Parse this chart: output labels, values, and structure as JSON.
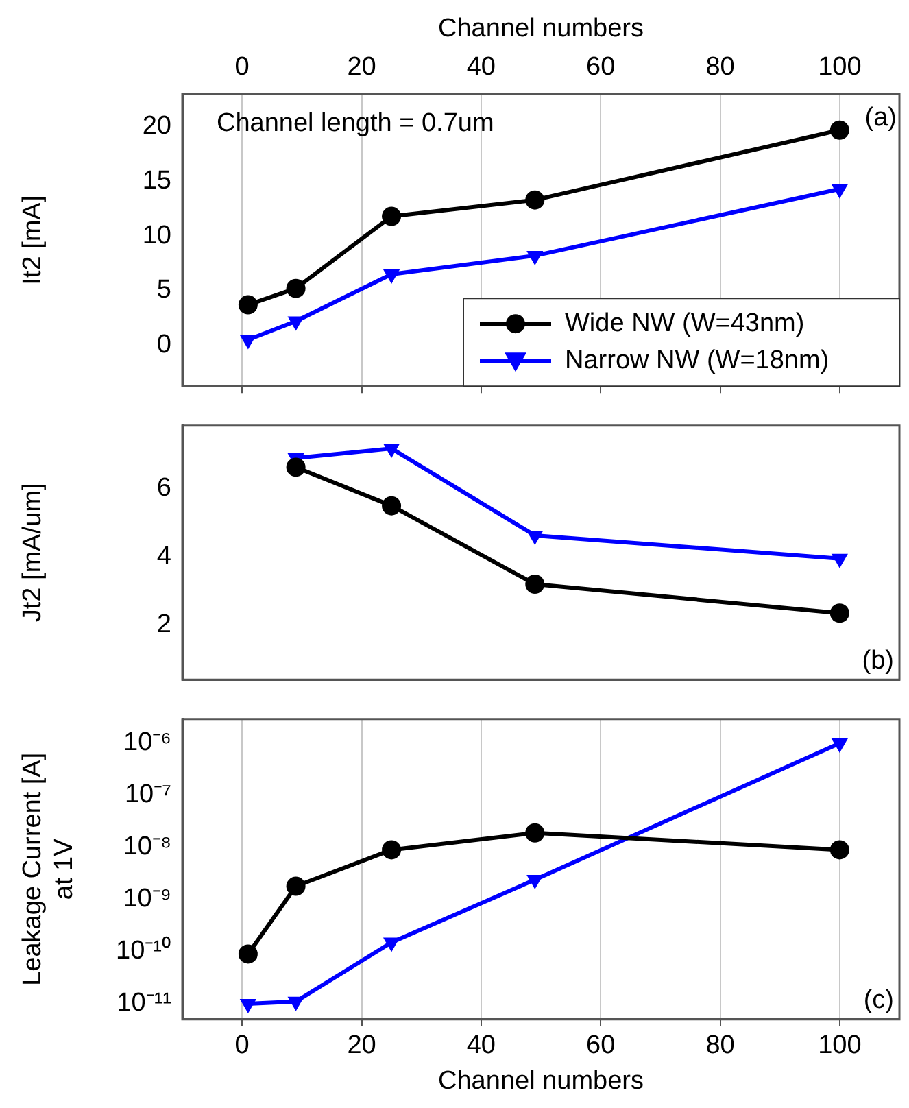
{
  "chart_data": [
    {
      "type": "line",
      "ylabel": "It2 [mA]",
      "x2label": "Channel numbers",
      "annotations": [
        "Channel length = 0.7um",
        "(a)"
      ],
      "x": [
        1,
        9,
        25,
        49,
        100
      ],
      "xlim": [
        -10,
        110
      ],
      "x2lim": [
        -10,
        110
      ],
      "x2ticks": [
        0,
        20,
        40,
        60,
        80,
        100
      ],
      "ylim": [
        -3.75,
        23
      ],
      "yticks": [
        0,
        5,
        10,
        15,
        20
      ],
      "tick_labels": "y",
      "grid": "x",
      "legend": "bottom right",
      "line_style": "solid",
      "series": [
        {
          "name": "Wide NW (W=43nm)",
          "color": "#000000",
          "marker": "circle",
          "values": [
            3.7,
            5.2,
            11.8,
            13.3,
            19.7
          ]
        },
        {
          "name": "Narrow NW (W=18nm)",
          "color": "#0000ff",
          "marker": "triangle",
          "values": [
            0.5,
            2.2,
            6.5,
            8.2,
            14.3
          ]
        }
      ]
    },
    {
      "type": "line",
      "ylabel": "Jt2 [mA/um]",
      "annotations": [
        "(b)"
      ],
      "x": [
        9,
        25,
        49,
        100
      ],
      "xlim": [
        -10,
        110
      ],
      "ylim": [
        0.4,
        7.85
      ],
      "yticks": [
        2,
        4,
        6
      ],
      "tick_labels": "y",
      "grid": "x",
      "line_style": "solid",
      "series": [
        {
          "color": "#000000",
          "marker": "circle",
          "values": [
            6.63,
            5.5,
            3.2,
            2.35
          ]
        },
        {
          "color": "#0000ff",
          "marker": "triangle",
          "values": [
            6.9,
            7.18,
            4.63,
            3.95
          ]
        }
      ]
    },
    {
      "type": "line",
      "ylabel": "Leakage Current [A]\nat 1V",
      "xlabel": "Channel numbers",
      "annotations": [
        "(c)"
      ],
      "x": [
        1,
        9,
        25,
        49,
        100
      ],
      "xlim": [
        -10,
        110
      ],
      "xticks": [
        0,
        20,
        40,
        60,
        80,
        100
      ],
      "log": "y",
      "ylim": [
        5e-12,
        2.9e-06
      ],
      "yticks": [
        {
          "value": 1e-11,
          "label": "10⁻¹¹"
        },
        {
          "value": 1e-10,
          "label": "10⁻¹⁰"
        },
        {
          "value": 1e-09,
          "label": "10⁻⁹"
        },
        {
          "value": 1e-08,
          "label": "10⁻⁸"
        },
        {
          "value": 1e-07,
          "label": "10⁻⁷"
        },
        {
          "value": 1e-06,
          "label": "10⁻⁶"
        }
      ],
      "grid": "x",
      "line_style": "solid",
      "series": [
        {
          "color": "#000000",
          "marker": "circle",
          "values": [
            9e-11,
            1.8e-09,
            9e-09,
            1.9e-08,
            9e-09
          ]
        },
        {
          "color": "#0000ff",
          "marker": "triangle",
          "values": [
            1e-11,
            1.1e-11,
            1.5e-10,
            2.4e-09,
            1e-06
          ]
        }
      ]
    }
  ]
}
